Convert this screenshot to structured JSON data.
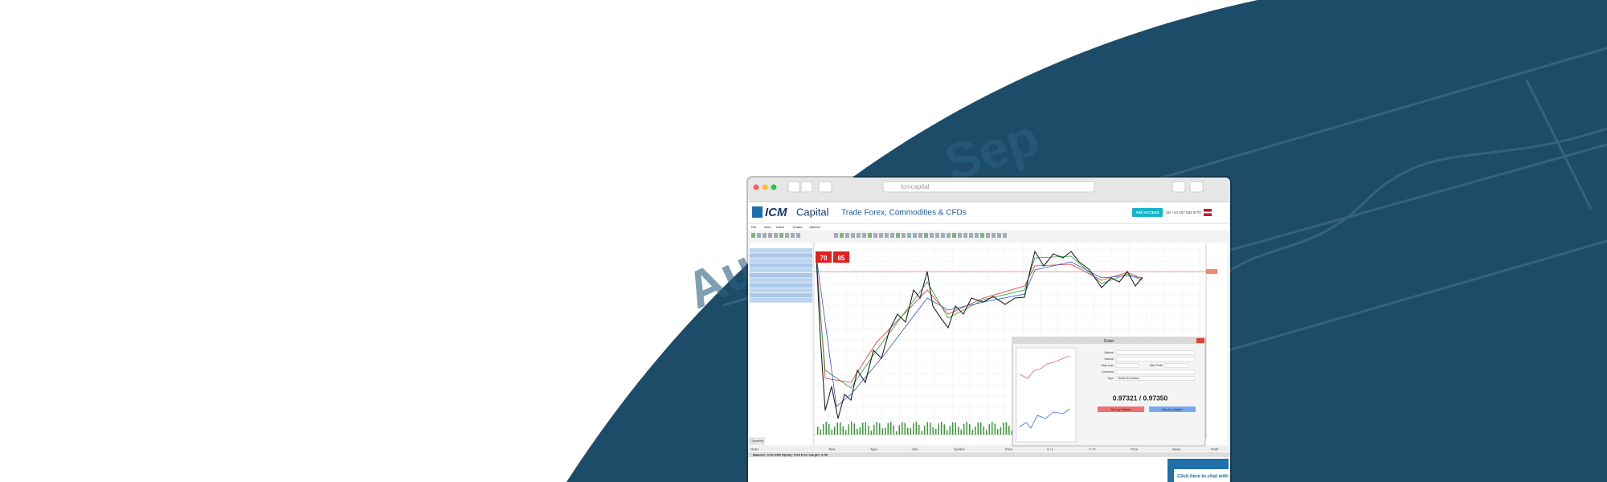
{
  "background": {
    "labels": [
      "Sep",
      "Aug"
    ]
  },
  "browser": {
    "url": "icmcapital"
  },
  "header": {
    "brand_mark": "ICM",
    "brand_name": "Capital",
    "tagline": "Trade Forex, Commodities & CFDs",
    "button": "ASK ACCESS",
    "phone": "UK +44 207 634 9770"
  },
  "menu": [
    "File",
    "View",
    "Insert",
    "Charts",
    "Options"
  ],
  "quote_panel": {
    "sell": "70",
    "buy": "85"
  },
  "symbols_tab": "Symbols",
  "order": {
    "title": "Order",
    "symbol_label": "Symbol",
    "volume_label": "Volume",
    "stop_loss_label": "Stop Loss",
    "take_profit_label": "Take Profit",
    "comment_label": "Comment",
    "type_label": "Type",
    "type": "Market Execution",
    "price": "0.97321 / 0.97350",
    "sell_button": "Sell by Market",
    "buy_button": "Buy by Market"
  },
  "bottom_columns": [
    "Order",
    "Time",
    "Type",
    "Size",
    "Symbol",
    "Price",
    "S / L",
    "T / P",
    "Price",
    "Swap",
    "Profit"
  ],
  "status": "Balance: 0.00 USD  Equity: 0.00  Free margin: 0.00",
  "chat": "Click here to chat with"
}
